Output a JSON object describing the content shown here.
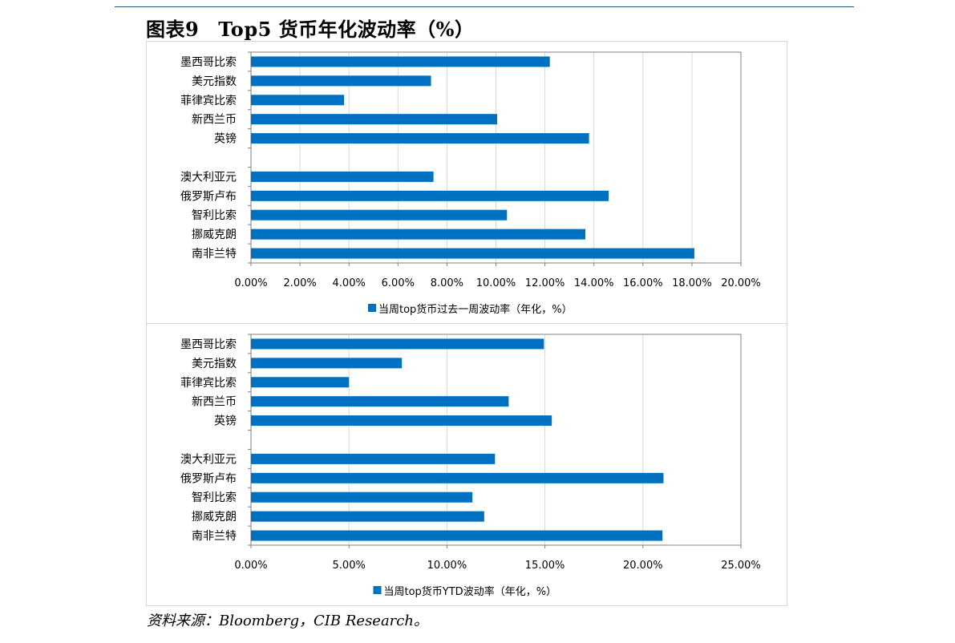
{
  "figure": {
    "label": "图表9",
    "title": "Top5 货币年化波动率（%）"
  },
  "source": {
    "prefix": "资料来源：",
    "text": "Bloomberg，CIB Research。"
  },
  "colors": {
    "bar": "#0070c0",
    "grid": "#d9d9d9",
    "axis": "#808080",
    "rule": "#1f4e79"
  },
  "chart_data": [
    {
      "type": "bar",
      "orientation": "horizontal",
      "categories": [
        "墨西哥比索",
        "美元指数",
        "菲律宾比索",
        "新西兰币",
        "英镑",
        "",
        "澳大利亚元",
        "俄罗斯卢布",
        "智利比索",
        "挪威克朗",
        "南非兰特"
      ],
      "series": [
        {
          "name": "当周top货币过去一周波动率（年化，%）",
          "values": [
            12.2,
            7.35,
            3.8,
            10.05,
            13.8,
            null,
            7.45,
            14.6,
            10.45,
            13.65,
            18.1
          ]
        }
      ],
      "xlim": [
        0,
        20
      ],
      "xticks": [
        "0.00%",
        "2.00%",
        "4.00%",
        "6.00%",
        "8.00%",
        "10.00%",
        "12.00%",
        "14.00%",
        "16.00%",
        "18.00%",
        "20.00%"
      ],
      "grid": true,
      "legend_position": "bottom"
    },
    {
      "type": "bar",
      "orientation": "horizontal",
      "categories": [
        "墨西哥比索",
        "美元指数",
        "菲律宾比索",
        "新西兰币",
        "英镑",
        "",
        "澳大利亚元",
        "俄罗斯卢布",
        "智利比索",
        "挪威克朗",
        "南非兰特"
      ],
      "series": [
        {
          "name": "当周top货币YTD波动率（年化，%）",
          "values": [
            14.95,
            7.7,
            5.0,
            13.15,
            15.35,
            null,
            12.45,
            21.05,
            11.3,
            11.9,
            21.0
          ]
        }
      ],
      "xlim": [
        0,
        25
      ],
      "xticks": [
        "0.00%",
        "5.00%",
        "10.00%",
        "15.00%",
        "20.00%",
        "25.00%"
      ],
      "grid": true,
      "legend_position": "bottom"
    }
  ]
}
